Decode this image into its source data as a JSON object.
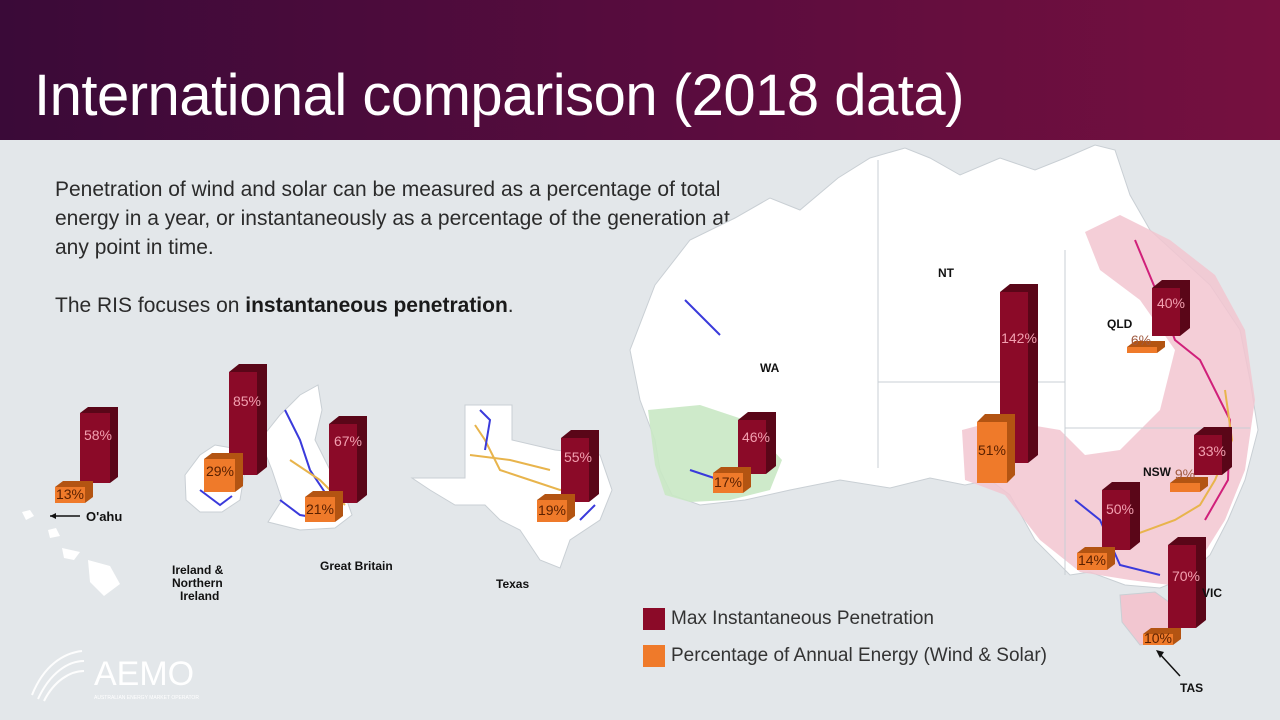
{
  "title": "International comparison (2018 data)",
  "intro": {
    "paragraph1": "Penetration of wind and solar can be measured as a percentage of total energy in a year, or instantaneously as a percentage of the generation at any point in time.",
    "paragraph2_prefix": "The RIS focuses on ",
    "paragraph2_bold": "instantaneous penetration",
    "paragraph2_suffix": "."
  },
  "colors": {
    "max": "#8b0a28",
    "annual": "#ef7a2a"
  },
  "regions": [
    {
      "id": "oahu",
      "name": "O'ahu",
      "max": "58%",
      "annual": "13%"
    },
    {
      "id": "ireland",
      "name_lines": [
        "Ireland &",
        "Northern",
        "Ireland"
      ],
      "max": "85%",
      "annual": "29%"
    },
    {
      "id": "gb",
      "name": "Great Britain",
      "max": "67%",
      "annual": "21%"
    },
    {
      "id": "texas",
      "name": "Texas",
      "max": "55%",
      "annual": "19%"
    },
    {
      "id": "wa",
      "name": "WA",
      "max": "46%",
      "annual": "17%"
    },
    {
      "id": "sa",
      "name": "",
      "max": "142%",
      "annual": "51%"
    },
    {
      "id": "nt",
      "name": "NT"
    },
    {
      "id": "qld",
      "name": "QLD",
      "max": "40%",
      "annual": "6%"
    },
    {
      "id": "nsw",
      "name": "NSW",
      "max": "33%",
      "annual": "9%"
    },
    {
      "id": "vic-low",
      "name": "",
      "max": "50%",
      "annual": "14%"
    },
    {
      "id": "vic",
      "name": "VIC",
      "max": "70%"
    },
    {
      "id": "tas",
      "name": "TAS",
      "annual": "10%"
    }
  ],
  "legend": {
    "max_label": "Max Instantaneous Penetration",
    "annual_label": "Percentage of Annual Energy (Wind & Solar)"
  },
  "logo": {
    "text": "AEMO",
    "subtext": "AUSTRALIAN ENERGY MARKET OPERATOR"
  }
}
